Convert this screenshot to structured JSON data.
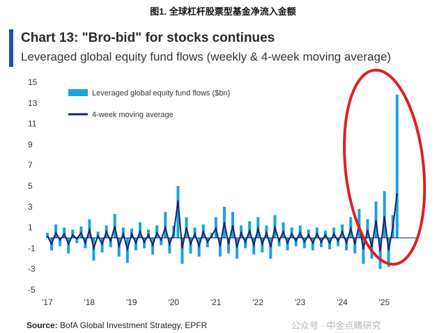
{
  "figure_title": "图1. 全球杠杆股票型基金净流入金额",
  "source": {
    "label": "Source:",
    "text": " BofA Global Investment Strategy, EPFR"
  },
  "watermark": "公众号 · 中金点睛研究",
  "colors": {
    "accent": "#1f4fb3",
    "weekly": "#1aa3dd",
    "moving_avg": "#14246b",
    "highlight_ellipse": "#e02020"
  },
  "chart_data": {
    "type": "line",
    "title": "Chart 13: \"Bro-bid\" for stocks continues",
    "subtitle": "Leveraged global equity fund flows (weekly & 4-week moving average)",
    "legend": {
      "placement": "top-left"
    },
    "grid": false,
    "zero_line": true,
    "annotation": "red ellipse highlighting 2024–2025 surge",
    "ylim": [
      -5,
      15
    ],
    "yticks": [
      15,
      13,
      11,
      9,
      7,
      5,
      3,
      1,
      -1,
      -3,
      -5
    ],
    "xlim": [
      2017,
      2025.8
    ],
    "xticks": [
      {
        "value": 2017,
        "label": "'17"
      },
      {
        "value": 2018,
        "label": "'18"
      },
      {
        "value": 2019,
        "label": "'19"
      },
      {
        "value": 2020,
        "label": "'20"
      },
      {
        "value": 2021,
        "label": "'21"
      },
      {
        "value": 2022,
        "label": "'22"
      },
      {
        "value": 2023,
        "label": "'23"
      },
      {
        "value": 2024,
        "label": "'24"
      },
      {
        "value": 2025,
        "label": "'25"
      }
    ],
    "series": [
      {
        "name": "Leveraged global equity fund flows ($bn)",
        "style": "bar",
        "x": [
          2017.0,
          2017.1,
          2017.2,
          2017.3,
          2017.4,
          2017.5,
          2017.6,
          2017.7,
          2017.8,
          2017.9,
          2018.0,
          2018.1,
          2018.2,
          2018.3,
          2018.4,
          2018.5,
          2018.6,
          2018.7,
          2018.8,
          2018.9,
          2019.0,
          2019.1,
          2019.2,
          2019.3,
          2019.4,
          2019.5,
          2019.6,
          2019.7,
          2019.8,
          2019.9,
          2020.0,
          2020.1,
          2020.2,
          2020.3,
          2020.4,
          2020.5,
          2020.6,
          2020.7,
          2020.8,
          2020.9,
          2021.0,
          2021.1,
          2021.2,
          2021.3,
          2021.4,
          2021.5,
          2021.6,
          2021.7,
          2021.8,
          2021.9,
          2022.0,
          2022.1,
          2022.2,
          2022.3,
          2022.4,
          2022.5,
          2022.6,
          2022.7,
          2022.8,
          2022.9,
          2023.0,
          2023.1,
          2023.2,
          2023.3,
          2023.4,
          2023.5,
          2023.6,
          2023.7,
          2023.8,
          2023.9,
          2024.0,
          2024.1,
          2024.2,
          2024.3,
          2024.4,
          2024.5,
          2024.6,
          2024.7,
          2024.8,
          2024.9,
          2025.0,
          2025.1,
          2025.2,
          2025.3
        ],
        "values": [
          0.5,
          -1.2,
          1.3,
          -0.8,
          1.0,
          -1.5,
          0.8,
          -0.5,
          1.1,
          -1.0,
          1.8,
          -2.2,
          0.6,
          -1.4,
          1.2,
          -0.9,
          2.3,
          -1.8,
          1.0,
          -2.4,
          0.9,
          -1.2,
          1.5,
          -1.0,
          0.8,
          -1.6,
          1.2,
          -0.7,
          2.5,
          -1.5,
          1.2,
          5.0,
          -2.5,
          2.0,
          -1.5,
          1.0,
          -1.8,
          1.3,
          -0.9,
          0.5,
          2.0,
          -1.8,
          3.0,
          -1.5,
          2.5,
          -2.0,
          1.2,
          -1.0,
          1.6,
          -1.6,
          2.0,
          -1.4,
          1.2,
          -2.0,
          2.2,
          -0.8,
          1.5,
          -1.2,
          1.0,
          -0.8,
          1.2,
          -1.0,
          0.8,
          -1.2,
          1.0,
          -0.9,
          0.7,
          -1.1,
          1.0,
          -0.8,
          1.3,
          -1.2,
          2.0,
          -1.5,
          2.8,
          -2.5,
          1.8,
          -2.0,
          3.5,
          -3.0,
          4.5,
          -2.8,
          2.2,
          13.8
        ]
      },
      {
        "name": "4-week moving average",
        "style": "line",
        "x": [
          2017.0,
          2017.1,
          2017.2,
          2017.3,
          2017.4,
          2017.5,
          2017.6,
          2017.7,
          2017.8,
          2017.9,
          2018.0,
          2018.1,
          2018.2,
          2018.3,
          2018.4,
          2018.5,
          2018.6,
          2018.7,
          2018.8,
          2018.9,
          2019.0,
          2019.1,
          2019.2,
          2019.3,
          2019.4,
          2019.5,
          2019.6,
          2019.7,
          2019.8,
          2019.9,
          2020.0,
          2020.1,
          2020.2,
          2020.3,
          2020.4,
          2020.5,
          2020.6,
          2020.7,
          2020.8,
          2020.9,
          2021.0,
          2021.1,
          2021.2,
          2021.3,
          2021.4,
          2021.5,
          2021.6,
          2021.7,
          2021.8,
          2021.9,
          2022.0,
          2022.1,
          2022.2,
          2022.3,
          2022.4,
          2022.5,
          2022.6,
          2022.7,
          2022.8,
          2022.9,
          2023.0,
          2023.1,
          2023.2,
          2023.3,
          2023.4,
          2023.5,
          2023.6,
          2023.7,
          2023.8,
          2023.9,
          2024.0,
          2024.1,
          2024.2,
          2024.3,
          2024.4,
          2024.5,
          2024.6,
          2024.7,
          2024.8,
          2024.9,
          2025.0,
          2025.1,
          2025.2,
          2025.3
        ],
        "values": [
          0.2,
          -0.6,
          0.5,
          -0.2,
          0.4,
          -0.6,
          0.3,
          -0.1,
          0.5,
          -0.5,
          0.8,
          -1.0,
          0.2,
          -0.6,
          0.6,
          -0.3,
          1.1,
          -0.8,
          0.4,
          -1.1,
          0.4,
          -0.5,
          0.6,
          -0.4,
          0.3,
          -0.7,
          0.5,
          -0.2,
          1.0,
          -0.6,
          0.5,
          3.6,
          -1.0,
          1.0,
          -0.6,
          0.4,
          -0.8,
          0.6,
          -0.4,
          0.2,
          0.9,
          -0.8,
          1.5,
          -0.6,
          1.2,
          -0.9,
          0.5,
          -0.4,
          0.7,
          -0.7,
          0.9,
          -0.6,
          0.5,
          -0.9,
          1.0,
          -0.3,
          0.6,
          -0.5,
          0.4,
          -0.3,
          0.5,
          -0.4,
          0.3,
          -0.5,
          0.4,
          -0.4,
          0.3,
          -0.5,
          0.4,
          -0.3,
          0.6,
          -0.5,
          0.9,
          -0.6,
          1.3,
          -1.1,
          0.8,
          -0.9,
          1.7,
          -1.3,
          2.1,
          -1.2,
          1.0,
          4.3
        ]
      }
    ]
  }
}
